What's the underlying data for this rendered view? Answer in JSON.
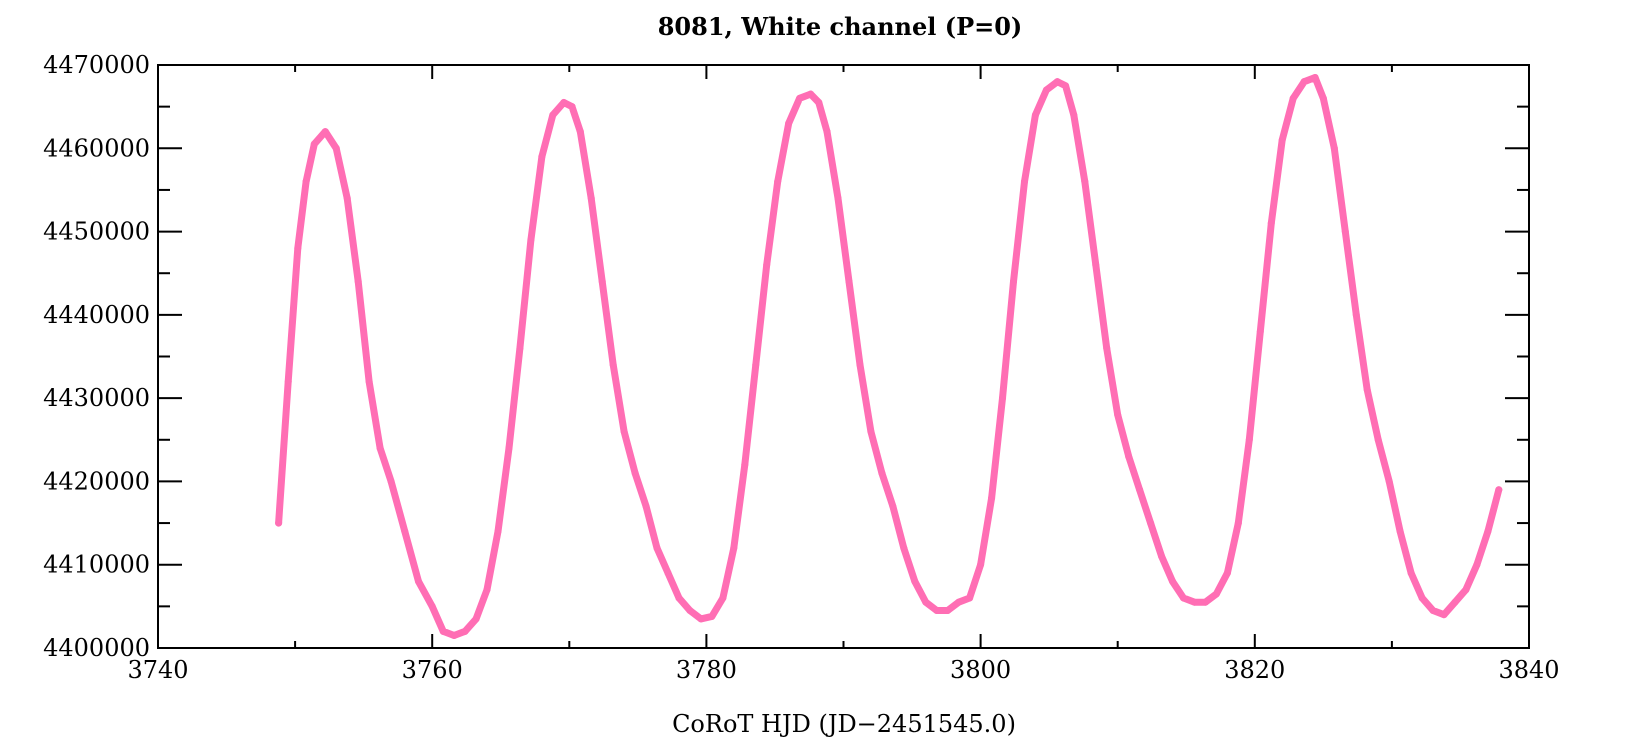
{
  "chart_data": {
    "type": "line",
    "title": "8081, White channel  (P=0)",
    "xlabel": "CoRoT HJD (JD−2451545.0)",
    "ylabel": "",
    "xlim": [
      3740,
      3840
    ],
    "ylim": [
      4400000,
      4470000
    ],
    "x_ticks": [
      "3740",
      "3760",
      "3780",
      "3800",
      "3820",
      "3840"
    ],
    "x_tick_values": [
      3740,
      3760,
      3780,
      3800,
      3820,
      3840
    ],
    "y_ticks": [
      "4400000",
      "4410000",
      "4420000",
      "4430000",
      "4440000",
      "4450000",
      "4460000",
      "4470000"
    ],
    "y_tick_values": [
      4400000,
      4410000,
      4420000,
      4430000,
      4440000,
      4450000,
      4460000,
      4470000
    ],
    "grid": false,
    "series_color": "#ff6eb4",
    "series": [
      {
        "name": "",
        "x": [
          3748.8,
          3749.5,
          3750.2,
          3750.8,
          3751.4,
          3752.2,
          3753.0,
          3753.8,
          3754.6,
          3755.4,
          3756.2,
          3757.0,
          3758.0,
          3759.0,
          3760.0,
          3760.8,
          3761.6,
          3762.4,
          3763.2,
          3764.0,
          3764.8,
          3765.6,
          3766.4,
          3767.2,
          3768.0,
          3768.8,
          3769.6,
          3770.2,
          3770.8,
          3771.6,
          3772.4,
          3773.2,
          3774.0,
          3774.8,
          3775.6,
          3776.4,
          3777.2,
          3778.0,
          3778.8,
          3779.6,
          3780.4,
          3781.2,
          3782.0,
          3782.8,
          3783.6,
          3784.4,
          3785.2,
          3786.0,
          3786.8,
          3787.6,
          3788.2,
          3788.8,
          3789.6,
          3790.4,
          3791.2,
          3792.0,
          3792.8,
          3793.6,
          3794.4,
          3795.2,
          3796.0,
          3796.8,
          3797.6,
          3798.4,
          3799.2,
          3800.0,
          3800.8,
          3801.6,
          3802.4,
          3803.2,
          3804.0,
          3804.8,
          3805.6,
          3806.2,
          3806.8,
          3807.6,
          3808.4,
          3809.2,
          3810.0,
          3810.8,
          3811.6,
          3812.4,
          3813.2,
          3814.0,
          3814.8,
          3815.6,
          3816.4,
          3817.2,
          3818.0,
          3818.8,
          3819.6,
          3820.4,
          3821.2,
          3822.0,
          3822.8,
          3823.6,
          3824.4,
          3825.0,
          3825.8,
          3826.6,
          3827.4,
          3828.2,
          3829.0,
          3829.8,
          3830.6,
          3831.4,
          3832.2,
          3833.0,
          3833.8,
          3834.6,
          3835.4,
          3836.2,
          3837.0,
          3837.8
        ],
        "y": [
          4415000,
          4432000,
          4448000,
          4456000,
          4460500,
          4462000,
          4460000,
          4454000,
          4444000,
          4432000,
          4424000,
          4420000,
          4414000,
          4408000,
          4405000,
          4402000,
          4401500,
          4402000,
          4403500,
          4407000,
          4414000,
          4424000,
          4436000,
          4449000,
          4459000,
          4464000,
          4465500,
          4465000,
          4462000,
          4454000,
          4444000,
          4434000,
          4426000,
          4421000,
          4417000,
          4412000,
          4409000,
          4406000,
          4404500,
          4403500,
          4403800,
          4406000,
          4412000,
          4422000,
          4434000,
          4446000,
          4456000,
          4463000,
          4466000,
          4466500,
          4465500,
          4462000,
          4454000,
          4444000,
          4434000,
          4426000,
          4421000,
          4417000,
          4412000,
          4408000,
          4405500,
          4404500,
          4404500,
          4405500,
          4406000,
          4410000,
          4418000,
          4430000,
          4444000,
          4456000,
          4464000,
          4467000,
          4468000,
          4467500,
          4464000,
          4456000,
          4446000,
          4436000,
          4428000,
          4423000,
          4419000,
          4415000,
          4411000,
          4408000,
          4406000,
          4405500,
          4405500,
          4406500,
          4409000,
          4415000,
          4425000,
          4438000,
          4451000,
          4461000,
          4466000,
          4468000,
          4468500,
          4466000,
          4460000,
          4450000,
          4440000,
          4431000,
          4425000,
          4420000,
          4414000,
          4409000,
          4406000,
          4404500,
          4404000,
          4405500,
          4407000,
          4410000,
          4414000,
          4419000
        ]
      }
    ]
  }
}
